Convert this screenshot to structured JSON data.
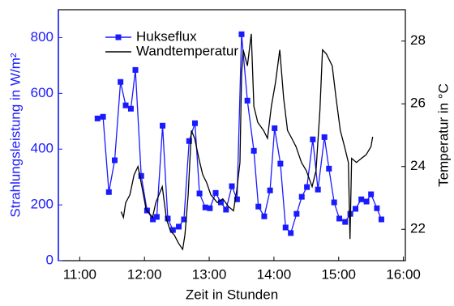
{
  "chart_data": {
    "type": "line",
    "xlabel": "Zeit in Stunden",
    "ylabel": "Strahlungsleistung in W/m²",
    "y2label": "Temperatur in °C",
    "xlim": [
      10.67,
      16.03
    ],
    "xticks": [
      {
        "value": 11,
        "label": "11:00"
      },
      {
        "value": 12,
        "label": "12:00"
      },
      {
        "value": 13,
        "label": "13:00"
      },
      {
        "value": 14,
        "label": "14:00"
      },
      {
        "value": 15,
        "label": "15:00"
      },
      {
        "value": 16,
        "label": "16:00"
      }
    ],
    "ylim": [
      0,
      900
    ],
    "yticks": [
      0,
      200,
      400,
      600,
      800
    ],
    "y2lim": [
      21,
      29
    ],
    "y2ticks": [
      22,
      24,
      26,
      28
    ],
    "left_axis_color": "#1a1aff",
    "legend": "upper left",
    "series": [
      {
        "name": "Hukseflux",
        "color": "#1a1aff",
        "marker": "square",
        "x": [
          11.275,
          11.36,
          11.45,
          11.54,
          11.63,
          11.71,
          11.79,
          11.86,
          11.95,
          12.04,
          12.13,
          12.19,
          12.28,
          12.36,
          12.44,
          12.53,
          12.61,
          12.69,
          12.78,
          12.85,
          12.94,
          13.01,
          13.1,
          13.18,
          13.26,
          13.35,
          13.43,
          13.5,
          13.59,
          13.69,
          13.76,
          13.85,
          13.94,
          14.01,
          14.1,
          14.18,
          14.26,
          14.35,
          14.43,
          14.51,
          14.6,
          14.68,
          14.78,
          14.85,
          14.93,
          15.01,
          15.1,
          15.18,
          15.26,
          15.35,
          15.43,
          15.5,
          15.59,
          15.66
        ],
        "values": [
          510,
          516,
          246,
          360,
          641,
          557,
          545,
          684,
          304,
          180,
          148,
          157,
          484,
          151,
          110,
          122,
          148,
          429,
          493,
          241,
          191,
          188,
          243,
          209,
          183,
          267,
          220,
          812,
          574,
          394,
          194,
          159,
          252,
          475,
          348,
          119,
          99,
          168,
          229,
          264,
          435,
          255,
          443,
          330,
          209,
          151,
          139,
          168,
          186,
          220,
          212,
          238,
          188,
          148
        ]
      },
      {
        "name": "Wandtemperatur",
        "color": "#000000",
        "axis": "y2",
        "x": [
          11.64,
          11.675,
          11.71,
          11.775,
          11.84,
          11.9,
          11.96,
          12.025,
          12.125,
          12.175,
          12.275,
          12.34,
          12.4,
          12.46,
          12.525,
          12.59,
          12.625,
          12.675,
          12.725,
          12.775,
          12.84,
          12.9,
          12.96,
          13.025,
          13.125,
          13.21,
          13.3,
          13.375,
          13.425,
          13.475,
          13.5,
          13.525,
          13.59,
          13.65,
          13.69,
          13.75,
          13.84,
          13.9,
          13.96,
          14.025,
          14.09,
          14.15,
          14.21,
          14.275,
          14.34,
          14.425,
          14.5,
          14.59,
          14.65,
          14.71,
          14.75,
          14.81,
          14.9,
          14.96,
          15.025,
          15.09,
          15.15,
          15.175,
          15.2,
          15.275,
          15.35,
          15.425,
          15.5,
          15.525
        ],
        "values": [
          22.56,
          22.38,
          22.85,
          23.1,
          23.74,
          24.0,
          23.36,
          22.64,
          22.38,
          22.85,
          23.36,
          22.33,
          21.95,
          21.82,
          21.56,
          21.36,
          21.82,
          23.1,
          25.15,
          24.9,
          24.26,
          23.74,
          23.49,
          23.1,
          22.85,
          22.97,
          22.72,
          22.59,
          23.23,
          24.13,
          26.95,
          27.72,
          27.21,
          28.23,
          25.92,
          25.41,
          25.15,
          24.9,
          25.92,
          26.69,
          27.72,
          26.18,
          25.15,
          24.9,
          24.64,
          24.13,
          23.87,
          23.36,
          23.87,
          25.79,
          27.72,
          27.59,
          27.21,
          26.18,
          25.15,
          24.64,
          24.13,
          21.69,
          24.26,
          24.13,
          24.26,
          24.38,
          24.64,
          24.95
        ]
      }
    ]
  }
}
